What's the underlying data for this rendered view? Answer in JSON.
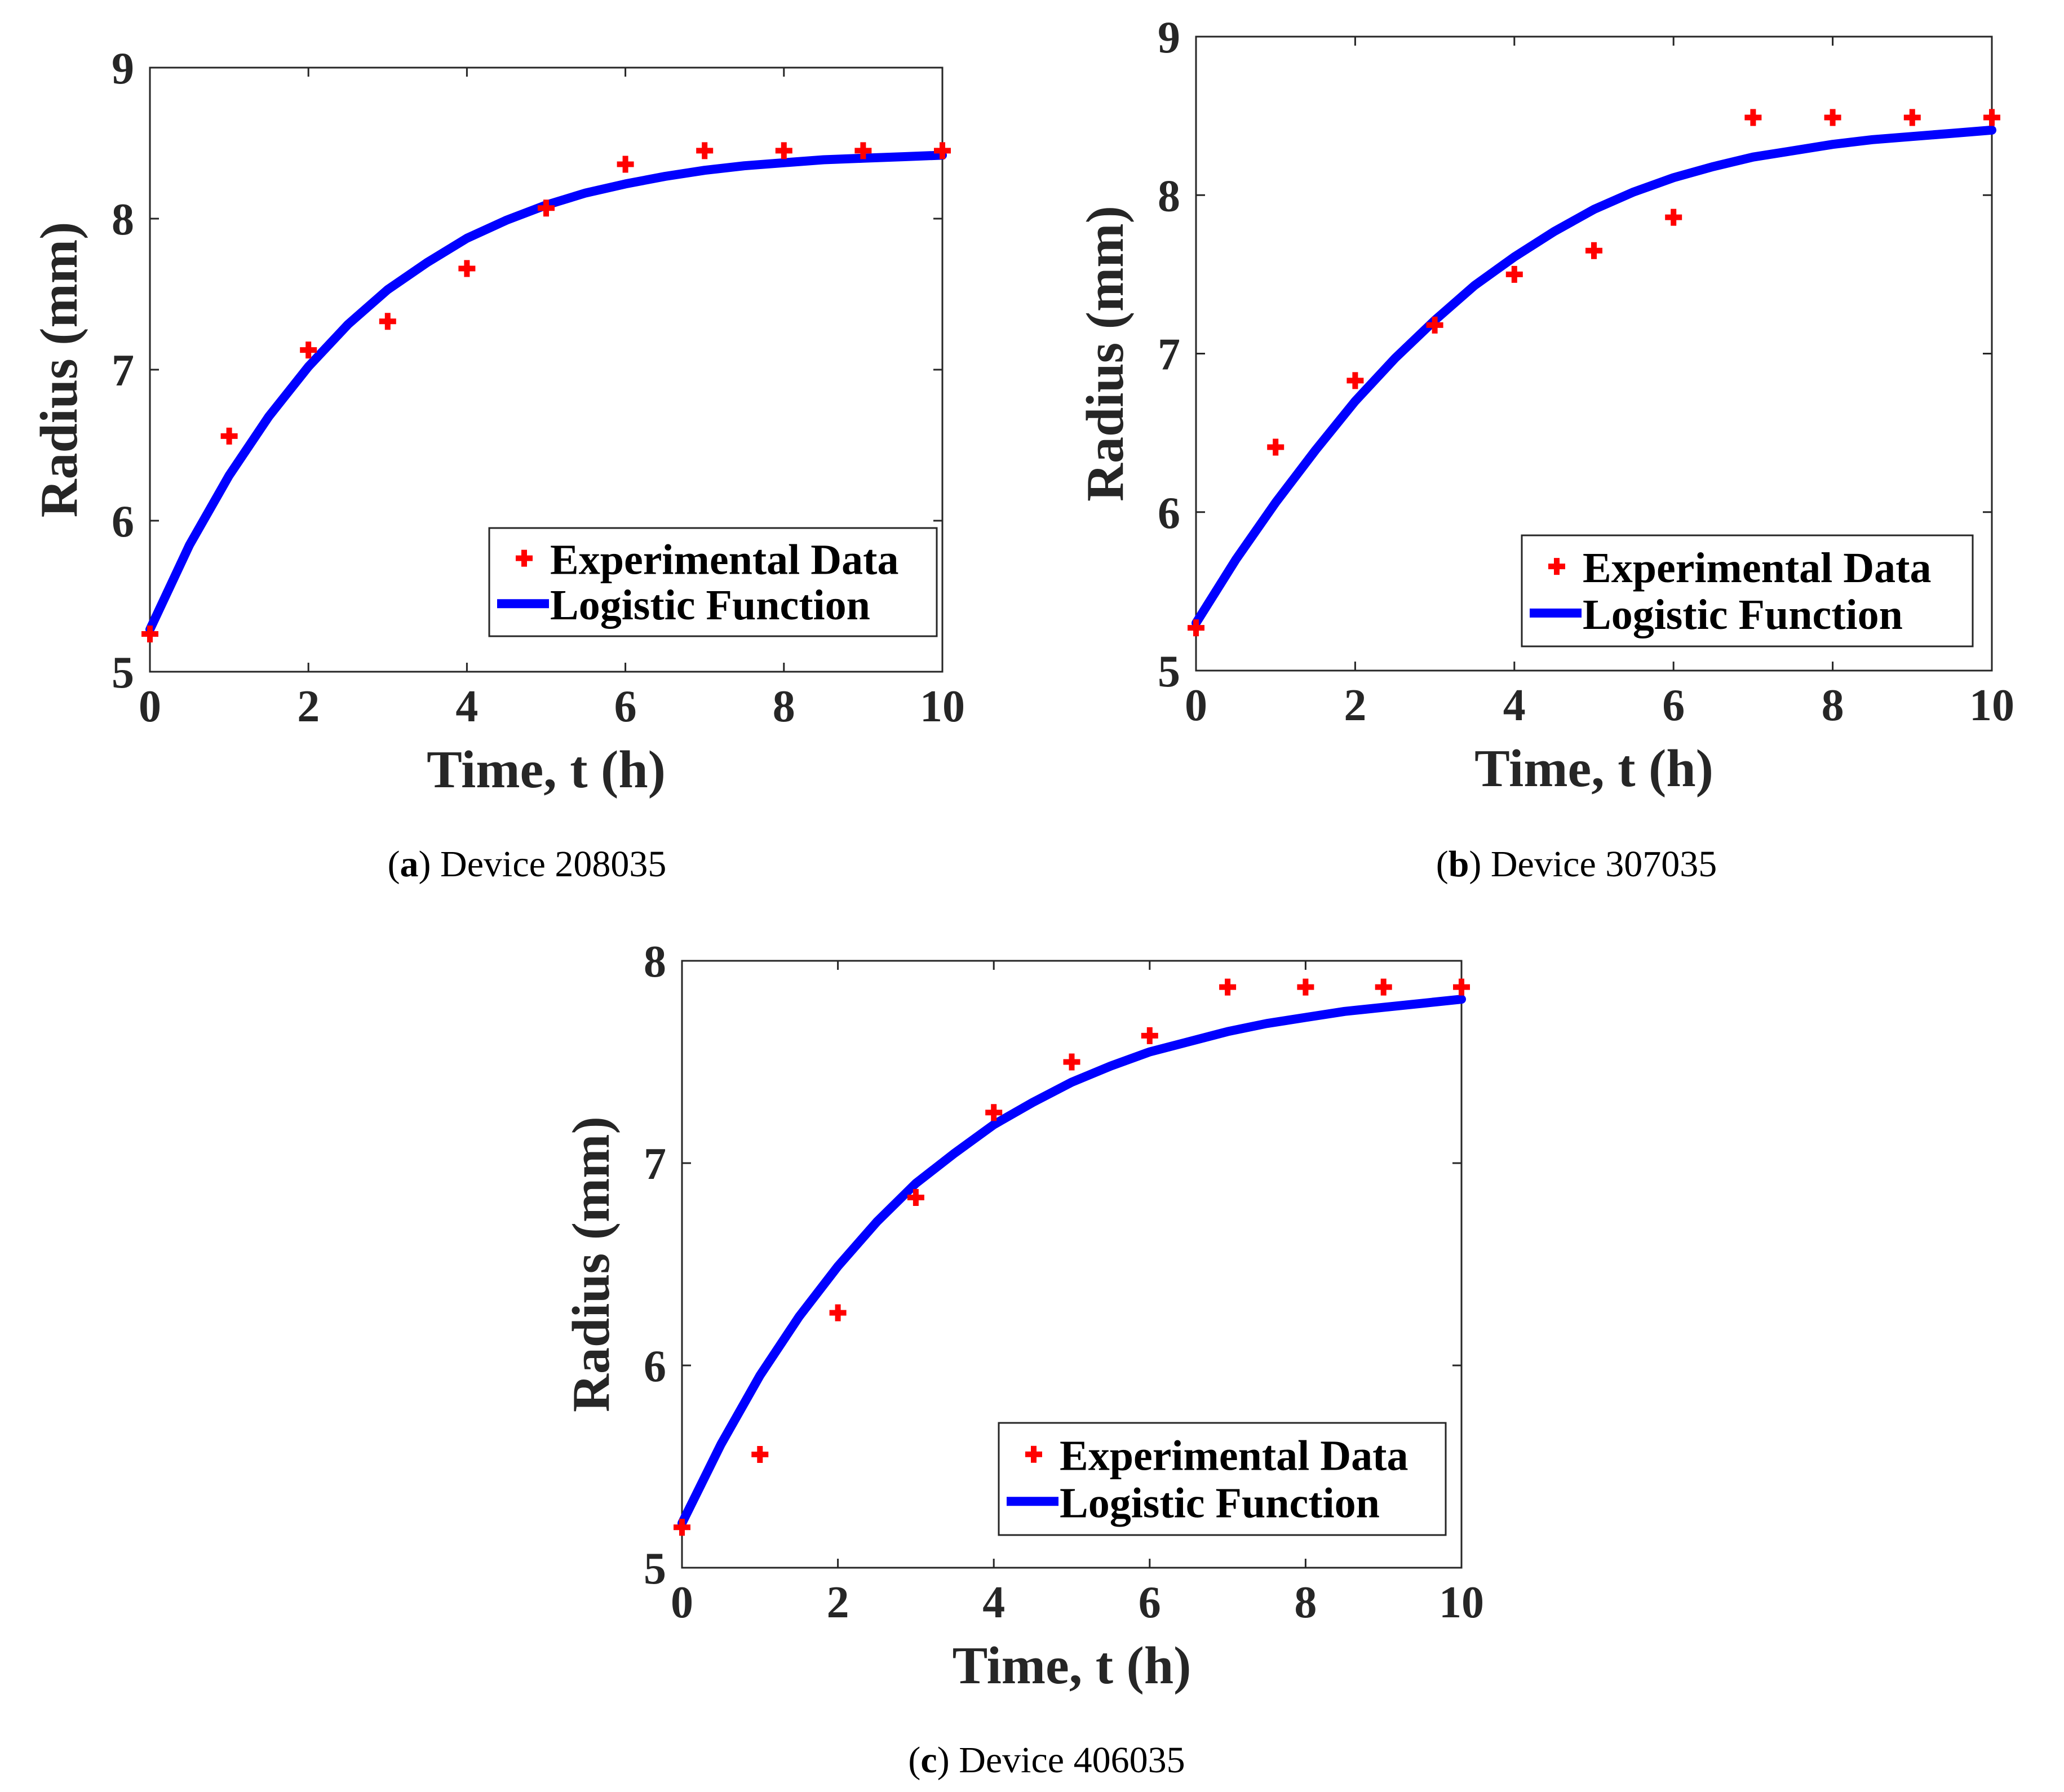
{
  "chart_data": [
    {
      "type": "scatter",
      "caption": {
        "open": "(",
        "letter": "a",
        "close": ")",
        "text": " Device 208035"
      },
      "xlabel": "Time, t (h)",
      "ylabel": "Radius (mm)",
      "xlim": [
        0,
        10
      ],
      "ylim": [
        5,
        9
      ],
      "xticks": [
        0,
        2,
        4,
        6,
        8,
        10
      ],
      "yticks": [
        5,
        6,
        7,
        8,
        9
      ],
      "grid": false,
      "legend_position": "bottom-right",
      "series": [
        {
          "name": "Experimental Data",
          "kind": "markers",
          "color": "#ff0000",
          "x": [
            0,
            1,
            2,
            3,
            4,
            5,
            6,
            7,
            8,
            9,
            10
          ],
          "y": [
            5.25,
            6.56,
            7.13,
            7.32,
            7.67,
            8.07,
            8.36,
            8.45,
            8.45,
            8.45,
            8.45
          ]
        },
        {
          "name": "Logistic Function",
          "kind": "line",
          "color": "#0000ff",
          "x": [
            0,
            0.5,
            1,
            1.5,
            2,
            2.5,
            3,
            3.5,
            4,
            4.5,
            5,
            5.5,
            6,
            6.5,
            7,
            7.5,
            8,
            8.5,
            9,
            9.5,
            10
          ],
          "y": [
            5.28,
            5.84,
            6.3,
            6.69,
            7.02,
            7.3,
            7.53,
            7.71,
            7.87,
            7.99,
            8.09,
            8.17,
            8.23,
            8.28,
            8.32,
            8.35,
            8.37,
            8.39,
            8.4,
            8.41,
            8.42
          ]
        }
      ]
    },
    {
      "type": "scatter",
      "caption": {
        "open": "(",
        "letter": "b",
        "close": ")",
        "text": " Device 307035"
      },
      "xlabel": "Time, t (h)",
      "ylabel": "Radius (mm)",
      "xlim": [
        0,
        10
      ],
      "ylim": [
        5,
        9
      ],
      "xticks": [
        0,
        2,
        4,
        6,
        8,
        10
      ],
      "yticks": [
        5,
        6,
        7,
        8,
        9
      ],
      "grid": false,
      "legend_position": "bottom-right",
      "series": [
        {
          "name": "Experimental Data",
          "kind": "markers",
          "color": "#ff0000",
          "x": [
            0,
            1,
            2,
            3,
            4,
            5,
            6,
            7,
            8,
            9,
            10
          ],
          "y": [
            5.27,
            6.41,
            6.83,
            7.18,
            7.5,
            7.65,
            7.86,
            8.49,
            8.49,
            8.49,
            8.49
          ]
        },
        {
          "name": "Logistic Function",
          "kind": "line",
          "color": "#0000ff",
          "x": [
            0,
            0.5,
            1,
            1.5,
            2,
            2.5,
            3,
            3.5,
            4,
            4.5,
            5,
            5.5,
            6,
            6.5,
            7,
            7.5,
            8,
            8.5,
            9,
            9.5,
            10
          ],
          "y": [
            5.3,
            5.7,
            6.06,
            6.39,
            6.7,
            6.97,
            7.21,
            7.43,
            7.61,
            7.77,
            7.91,
            8.02,
            8.11,
            8.18,
            8.24,
            8.28,
            8.32,
            8.35,
            8.37,
            8.39,
            8.41
          ]
        }
      ]
    },
    {
      "type": "scatter",
      "caption": {
        "open": "(",
        "letter": "c",
        "close": ")",
        "text": " Device 406035"
      },
      "xlabel": "Time, t (h)",
      "ylabel": "Radius (mm)",
      "xlim": [
        0,
        10
      ],
      "ylim": [
        5,
        8
      ],
      "xticks": [
        0,
        2,
        4,
        6,
        8,
        10
      ],
      "yticks": [
        5,
        6,
        7,
        8
      ],
      "grid": false,
      "legend_position": "bottom-right",
      "series": [
        {
          "name": "Experimental Data",
          "kind": "markers",
          "color": "#ff0000",
          "x": [
            0,
            1,
            2,
            3,
            4,
            5,
            6,
            7,
            8,
            9,
            10
          ],
          "y": [
            5.2,
            5.56,
            6.26,
            6.83,
            7.25,
            7.5,
            7.63,
            7.87,
            7.87,
            7.87,
            7.87
          ]
        },
        {
          "name": "Logistic Function",
          "kind": "line",
          "color": "#0000ff",
          "x": [
            0,
            0.5,
            1,
            1.5,
            2,
            2.5,
            3,
            3.5,
            4,
            4.5,
            5,
            5.5,
            6,
            6.5,
            7,
            7.5,
            8,
            8.5,
            9,
            9.5,
            10
          ],
          "y": [
            5.22,
            5.61,
            5.95,
            6.24,
            6.49,
            6.71,
            6.9,
            7.05,
            7.19,
            7.3,
            7.4,
            7.48,
            7.55,
            7.6,
            7.65,
            7.69,
            7.72,
            7.75,
            7.77,
            7.79,
            7.81
          ]
        }
      ]
    }
  ]
}
